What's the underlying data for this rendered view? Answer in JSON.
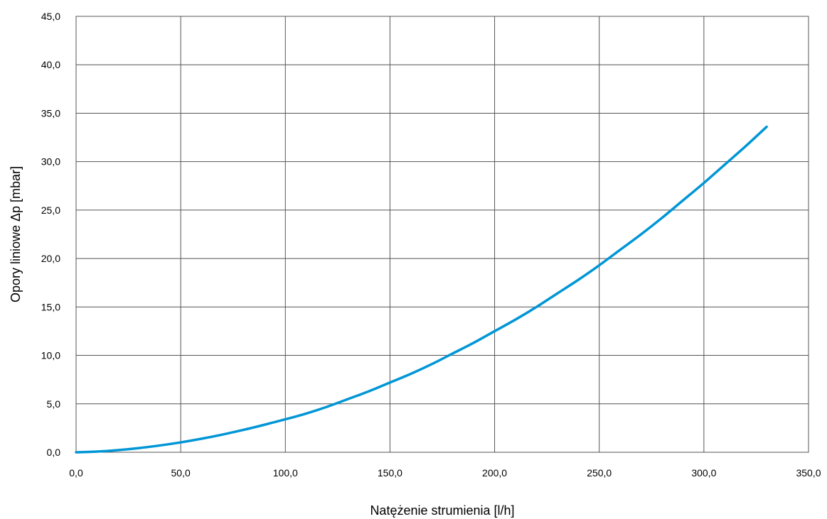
{
  "chart_data": {
    "type": "line",
    "xlabel": "Natężenie strumienia [l/h]",
    "ylabel": "Opory liniowe Δp [mbar]",
    "xlim": [
      0,
      350
    ],
    "ylim": [
      0,
      45
    ],
    "x_ticks": [
      "0,0",
      "50,0",
      "100,0",
      "150,0",
      "200,0",
      "250,0",
      "300,0",
      "350,0"
    ],
    "y_ticks": [
      "0,0",
      "5,0",
      "10,0",
      "15,0",
      "20,0",
      "25,0",
      "30,0",
      "35,0",
      "40,0",
      "45,0"
    ],
    "grid": true,
    "legend": "none",
    "series": [
      {
        "color": "#0096D6",
        "x": [
          0,
          10,
          20,
          30,
          40,
          50,
          60,
          70,
          80,
          90,
          100,
          110,
          120,
          130,
          140,
          150,
          160,
          170,
          180,
          190,
          200,
          210,
          220,
          230,
          240,
          250,
          260,
          270,
          280,
          290,
          300,
          310,
          320,
          330
        ],
        "y": [
          0,
          0.07,
          0.22,
          0.43,
          0.7,
          1.02,
          1.4,
          1.83,
          2.31,
          2.84,
          3.4,
          4.0,
          4.7,
          5.5,
          6.3,
          7.2,
          8.1,
          9.1,
          10.2,
          11.3,
          12.5,
          13.7,
          15.0,
          16.4,
          17.8,
          19.3,
          20.9,
          22.5,
          24.2,
          26.0,
          27.8,
          29.7,
          31.6,
          33.6
        ]
      }
    ]
  }
}
